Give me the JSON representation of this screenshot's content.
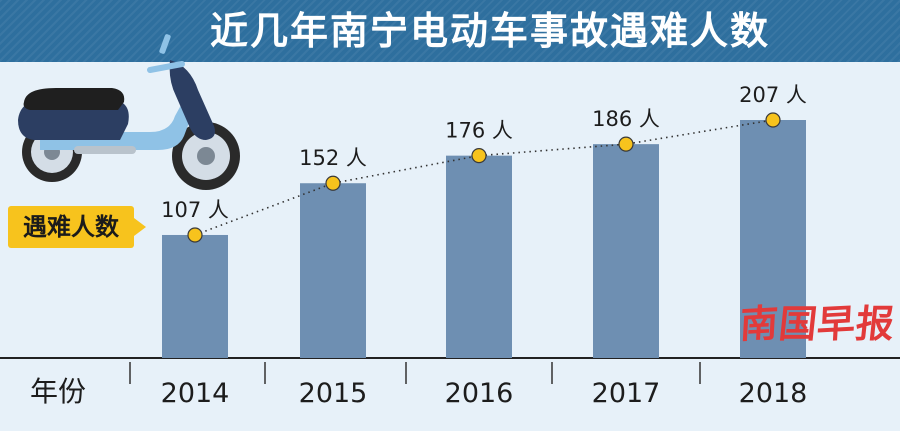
{
  "title": "近几年南宁电动车事故遇难人数",
  "legend_label": "遇难人数",
  "axis_label": "年份",
  "watermark": [
    "南",
    "国",
    "早",
    "报"
  ],
  "colors": {
    "background": "#e7f1f9",
    "title_bar": "#2e6f9e",
    "bar": "#6e8fb2",
    "marker": "#f7c31d",
    "legend_badge": "#f7c31d",
    "watermark": "#e23a3a"
  },
  "icons": {
    "scooter": "electric-scooter-illustration"
  },
  "chart_data": {
    "type": "bar",
    "title": "近几年南宁电动车事故遇难人数",
    "xlabel": "年份",
    "ylabel": "",
    "categories": [
      "2014",
      "2015",
      "2016",
      "2017",
      "2018"
    ],
    "values": [
      107,
      152,
      176,
      186,
      207
    ],
    "data_labels": [
      "107 人",
      "152 人",
      "176 人",
      "186 人",
      "207 人"
    ],
    "series": [
      {
        "name": "遇难人数",
        "values": [
          107,
          152,
          176,
          186,
          207
        ]
      }
    ],
    "overlay": "dotted line with yellow circle markers at each bar top",
    "grid": false,
    "legend": "left",
    "ylim": [
      0,
      207
    ]
  }
}
